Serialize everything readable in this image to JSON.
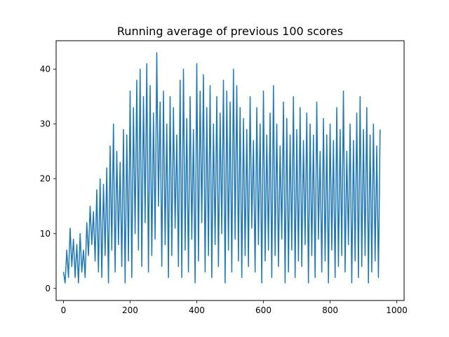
{
  "chart_data": {
    "type": "line",
    "title": "Running average of previous 100 scores",
    "xlabel": "",
    "ylabel": "",
    "xlim": [
      -22,
      1022
    ],
    "ylim": [
      -2.2,
      45.2
    ],
    "x_ticks": [
      0,
      200,
      400,
      600,
      800,
      1000
    ],
    "y_ticks": [
      0,
      10,
      20,
      30,
      40
    ],
    "x_tick_labels": [
      "0",
      "200",
      "400",
      "600",
      "800",
      "1000"
    ],
    "y_tick_labels": [
      "0",
      "10",
      "20",
      "30",
      "40"
    ],
    "grid": false,
    "series_color": "#1f77b4",
    "series": [
      {
        "x_start": 0,
        "x_step": 5,
        "values": [
          3,
          1,
          7,
          2,
          11,
          4,
          9,
          2,
          8,
          1,
          10,
          3,
          7,
          2,
          12,
          6,
          15,
          8,
          14,
          5,
          18,
          3,
          20,
          2,
          19,
          6,
          22,
          1,
          26,
          7,
          30,
          3,
          25,
          8,
          23,
          4,
          29,
          1,
          28,
          5,
          36,
          2,
          33,
          10,
          38,
          7,
          40,
          4,
          35,
          12,
          41,
          3,
          37,
          6,
          32,
          9,
          43,
          15,
          34,
          4,
          36,
          8,
          30,
          2,
          35,
          6,
          33,
          11,
          28,
          4,
          38,
          2,
          40,
          7,
          31,
          3,
          35,
          9,
          29,
          1,
          41,
          5,
          36,
          12,
          39,
          3,
          33,
          6,
          37,
          2,
          30,
          8,
          35,
          4,
          32,
          10,
          38,
          1,
          36,
          7,
          34,
          3,
          40,
          9,
          37,
          5,
          33,
          2,
          31,
          6,
          29,
          4,
          35,
          11,
          27,
          3,
          33,
          8,
          30,
          1,
          36,
          5,
          28,
          7,
          32,
          2,
          37,
          6,
          30,
          4,
          26,
          9,
          34,
          1,
          31,
          3,
          28,
          7,
          35,
          2,
          29,
          5,
          33,
          4,
          27,
          8,
          32,
          1,
          30,
          6,
          28,
          2,
          34,
          9,
          25,
          3,
          31,
          5,
          28,
          1,
          30,
          7,
          27,
          2,
          33,
          4,
          29,
          6,
          36,
          3,
          25,
          8,
          30,
          1,
          27,
          5,
          32,
          2,
          35,
          4,
          29,
          6,
          33,
          1,
          28,
          3,
          30,
          5,
          26,
          2,
          29
        ]
      }
    ]
  }
}
